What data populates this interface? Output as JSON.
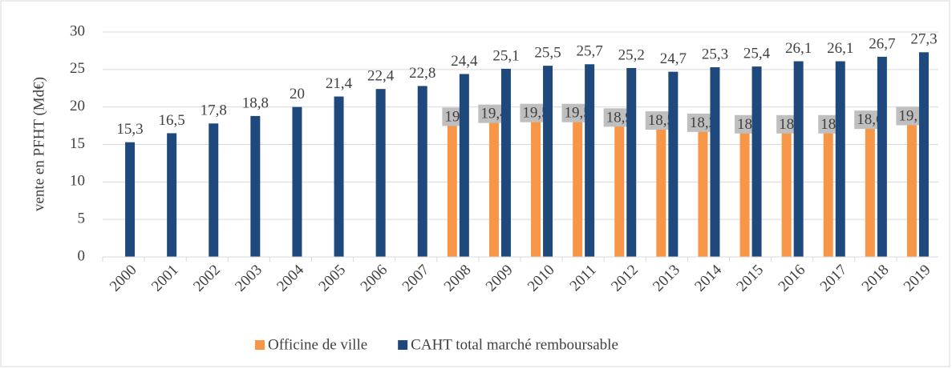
{
  "chart_data": {
    "type": "bar",
    "y_label": "vente en PFHT (Md€)",
    "categories": [
      "2000",
      "2001",
      "2002",
      "2003",
      "2004",
      "2005",
      "2006",
      "2007",
      "2008",
      "2009",
      "2010",
      "2011",
      "2012",
      "2013",
      "2014",
      "2015",
      "2016",
      "2017",
      "2018",
      "2019"
    ],
    "series": [
      {
        "name": "Officine de ville",
        "color": "#f79646",
        "values": [
          null,
          null,
          null,
          null,
          null,
          null,
          null,
          null,
          19,
          19.4,
          19.5,
          19.5,
          18.9,
          18.5,
          18.2,
          18,
          18,
          18,
          18.6,
          19.1
        ],
        "value_labels": [
          null,
          null,
          null,
          null,
          null,
          null,
          null,
          null,
          "19",
          "19,4",
          "19,5",
          "19,5",
          "18,9",
          "18,5",
          "18,2",
          "18",
          "18",
          "18",
          "18,6",
          "19,1"
        ]
      },
      {
        "name": "CAHT total marché remboursable",
        "color": "#1f497d",
        "values": [
          15.3,
          16.5,
          17.8,
          18.8,
          20,
          21.4,
          22.4,
          22.8,
          24.4,
          25.1,
          25.5,
          25.7,
          25.2,
          24.7,
          25.3,
          25.4,
          26.1,
          26.1,
          26.7,
          27.3
        ],
        "value_labels": [
          "15,3",
          "16,5",
          "17,8",
          "18,8",
          "20",
          "21,4",
          "22,4",
          "22,8",
          "24,4",
          "25,1",
          "25,5",
          "25,7",
          "25,2",
          "24,7",
          "25,3",
          "25,4",
          "26,1",
          "26,1",
          "26,7",
          "27,3"
        ]
      }
    ],
    "ylim": [
      0,
      30
    ],
    "yticks": [
      0,
      5,
      10,
      15,
      20,
      25,
      30
    ],
    "grid": true,
    "legend": "bottom"
  }
}
